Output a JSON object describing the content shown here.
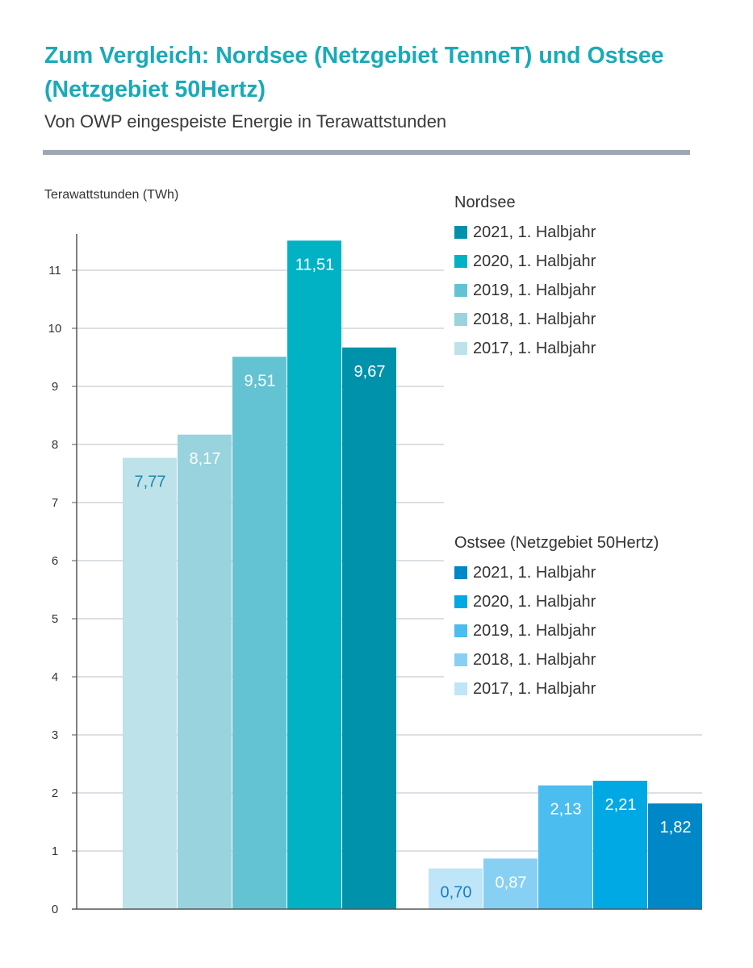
{
  "header": {
    "title": "Zum Vergleich: Nordsee (Netzgebiet TenneT) und Ostsee (Netzgebiet 50Hertz)",
    "subtitle": "Von OWP eingespeiste Energie in Terawattstunden"
  },
  "chart_data": {
    "type": "bar",
    "ylabel": "Terawattstunden (TWh)",
    "ylim": [
      0,
      11.5
    ],
    "yticks": [
      0,
      1,
      2,
      3,
      4,
      5,
      6,
      7,
      8,
      9,
      10,
      11
    ],
    "grid": true,
    "groups": [
      {
        "legend_title": "Nordsee",
        "series": [
          {
            "name": "2017, 1. Halbjahr",
            "value": 7.77,
            "label": "7,77",
            "color": "#bde2ea",
            "label_color": "#1a8aa6"
          },
          {
            "name": "2018, 1. Halbjahr",
            "value": 8.17,
            "label": "8,17",
            "color": "#98d3de",
            "label_color": "#ffffff"
          },
          {
            "name": "2019, 1. Halbjahr",
            "value": 9.51,
            "label": "9,51",
            "color": "#64c3d2",
            "label_color": "#ffffff"
          },
          {
            "name": "2020, 1. Halbjahr",
            "value": 11.51,
            "label": "11,51",
            "color": "#00b2c4",
            "label_color": "#ffffff"
          },
          {
            "name": "2021, 1. Halbjahr",
            "value": 9.67,
            "label": "9,67",
            "color": "#0092aa",
            "label_color": "#ffffff"
          }
        ]
      },
      {
        "legend_title": "Ostsee (Netzgebiet 50Hertz)",
        "series": [
          {
            "name": "2017, 1. Halbjahr",
            "value": 0.7,
            "label": "0,70",
            "color": "#bfe5f8",
            "label_color": "#1a7fbf"
          },
          {
            "name": "2018, 1. Halbjahr",
            "value": 0.87,
            "label": "0,87",
            "color": "#87d0f3",
            "label_color": "#ffffff"
          },
          {
            "name": "2019, 1. Halbjahr",
            "value": 2.13,
            "label": "2,13",
            "color": "#4bbdee",
            "label_color": "#ffffff"
          },
          {
            "name": "2020, 1. Halbjahr",
            "value": 2.21,
            "label": "2,21",
            "color": "#00a8e4",
            "label_color": "#ffffff"
          },
          {
            "name": "2021, 1. Halbjahr",
            "value": 1.82,
            "label": "1,82",
            "color": "#0087c8",
            "label_color": "#ffffff"
          }
        ]
      }
    ]
  }
}
